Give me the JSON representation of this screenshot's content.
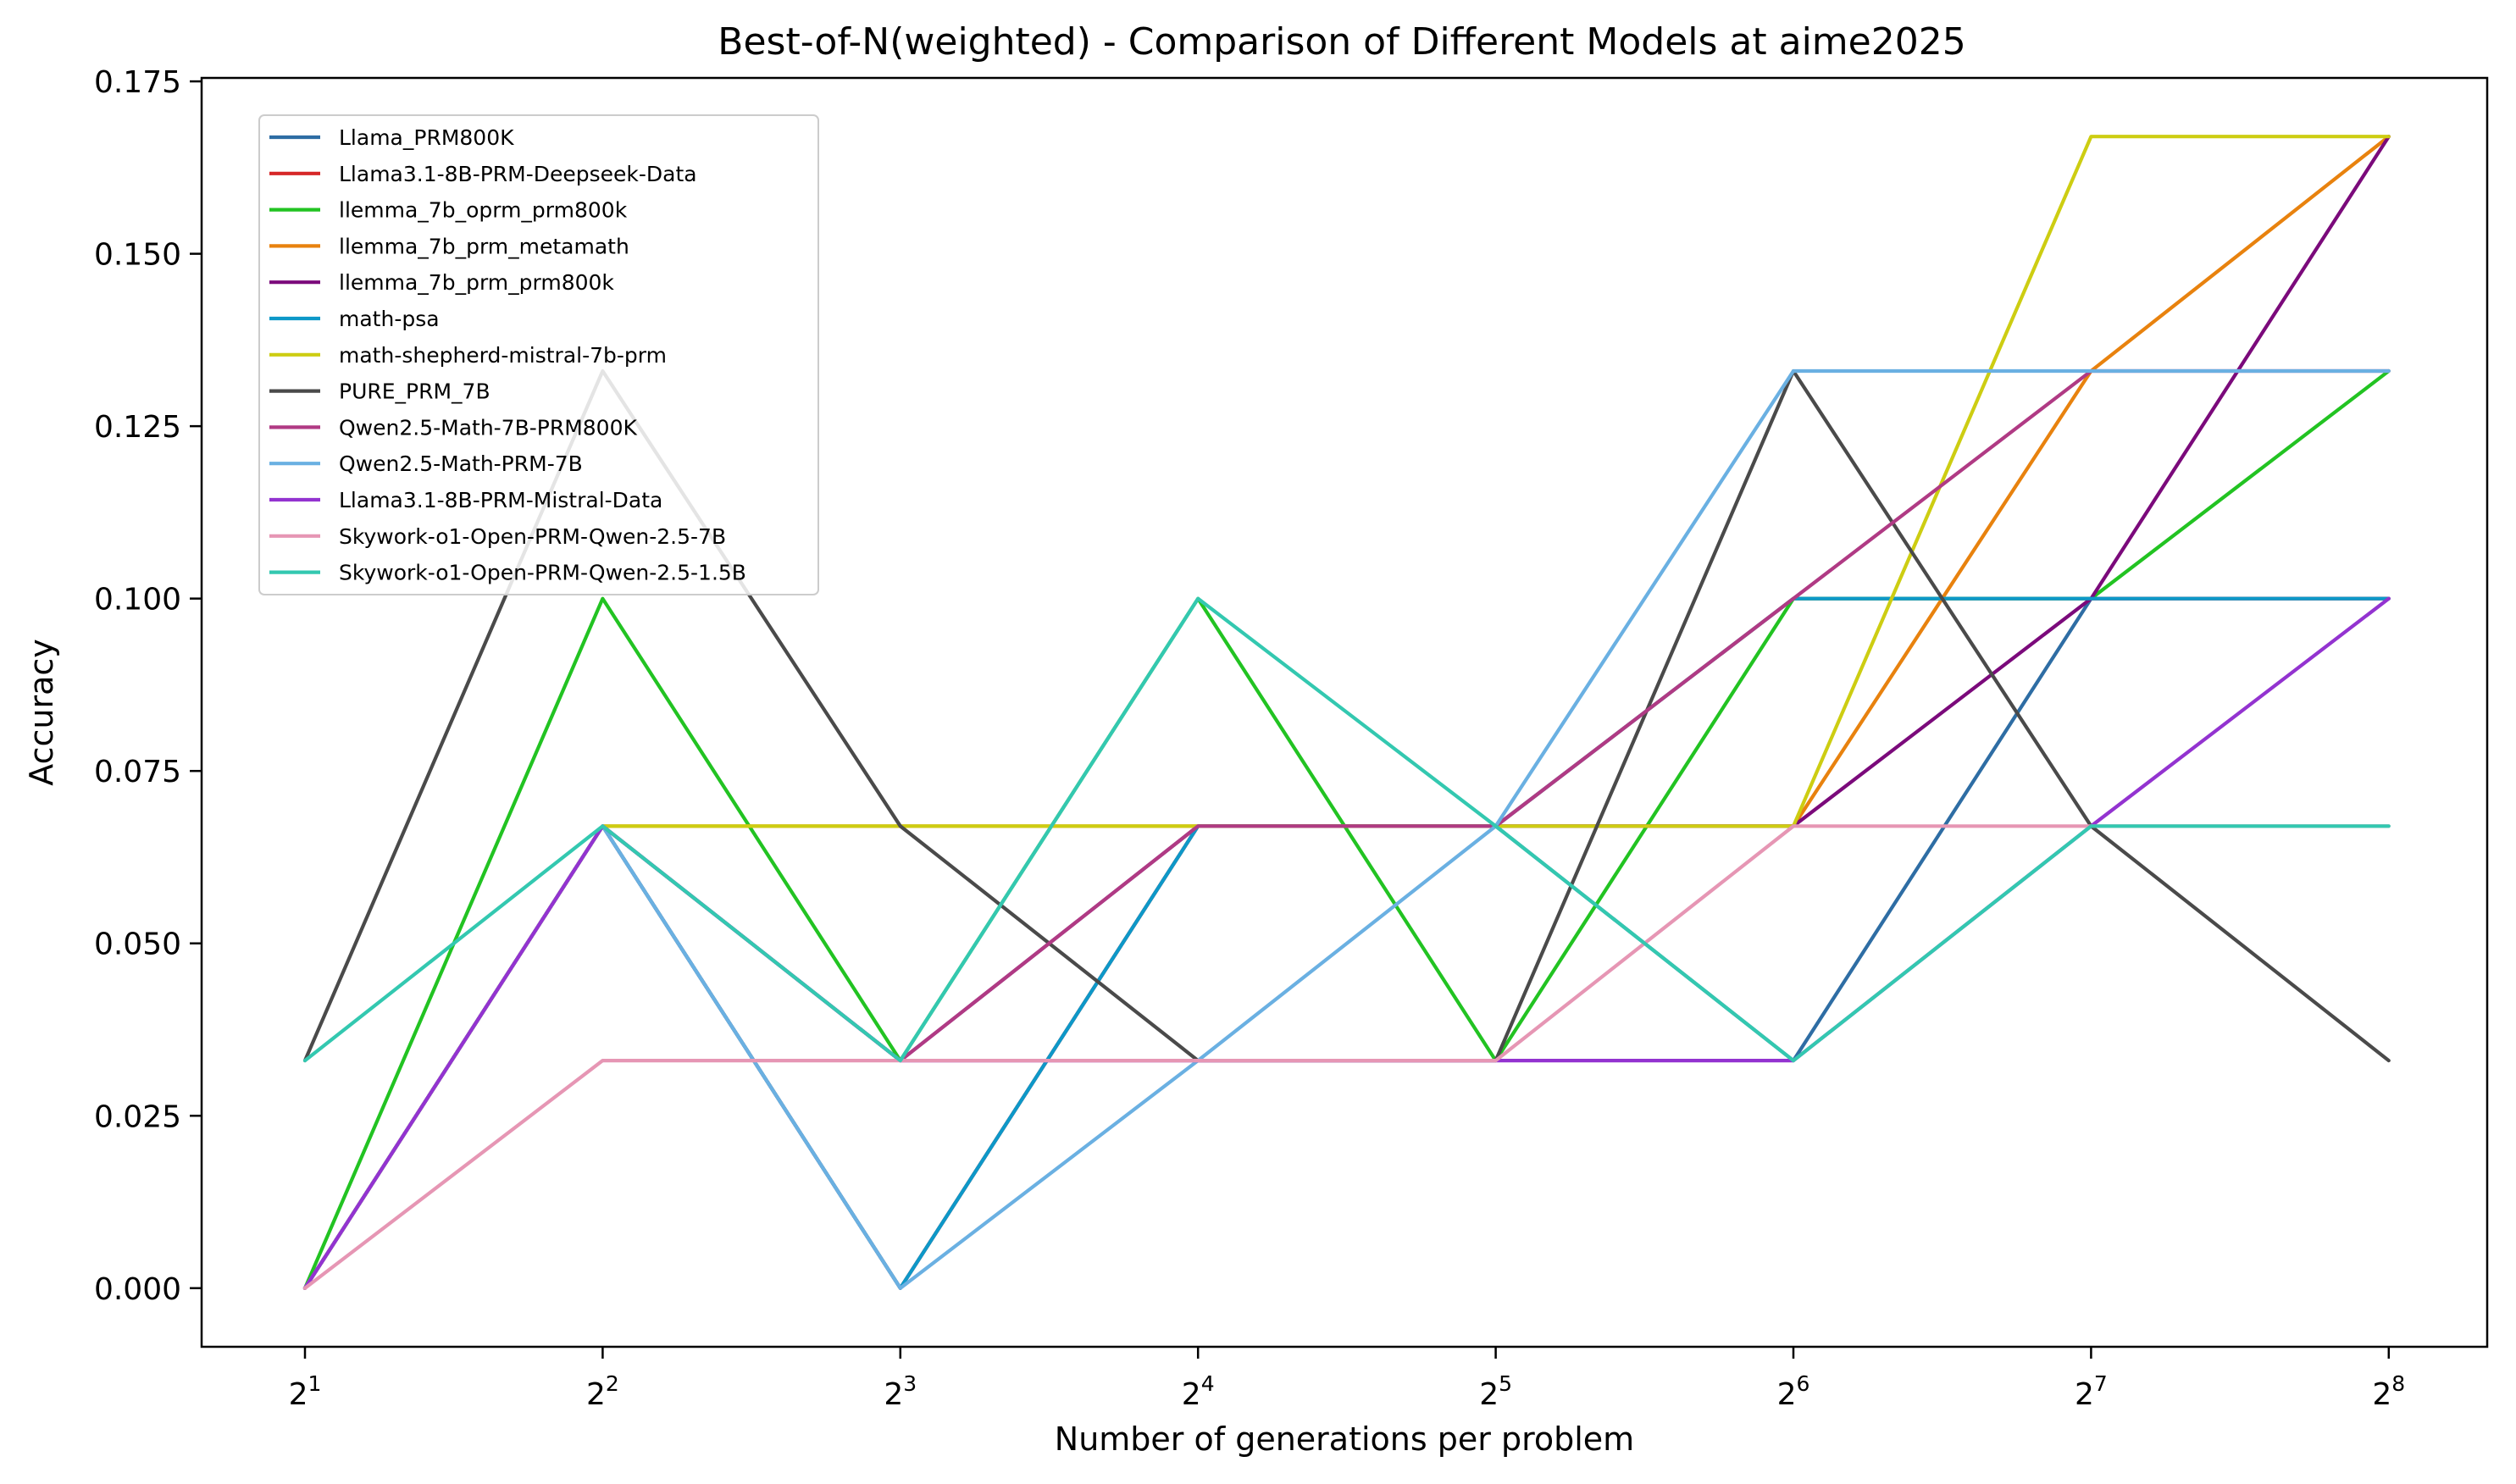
{
  "chart_data": {
    "type": "line",
    "title": "Best-of-N(weighted) - Comparison of Different Models at aime2025",
    "xlabel": "Number of generations per problem",
    "ylabel": "Accuracy",
    "x": [
      2,
      4,
      8,
      16,
      32,
      64,
      128,
      256
    ],
    "x_scale": "log2",
    "x_tick_labels": [
      {
        "base": "2",
        "exp": "1"
      },
      {
        "base": "2",
        "exp": "2"
      },
      {
        "base": "2",
        "exp": "3"
      },
      {
        "base": "2",
        "exp": "4"
      },
      {
        "base": "2",
        "exp": "5"
      },
      {
        "base": "2",
        "exp": "6"
      },
      {
        "base": "2",
        "exp": "7"
      },
      {
        "base": "2",
        "exp": "8"
      }
    ],
    "ylim": [
      -0.0085,
      0.1755
    ],
    "y_ticks": [
      0.0,
      0.025,
      0.05,
      0.075,
      0.1,
      0.125,
      0.15,
      0.175
    ],
    "y_tick_labels": [
      "0.000",
      "0.025",
      "0.050",
      "0.075",
      "0.100",
      "0.125",
      "0.150",
      "0.175"
    ],
    "grid": false,
    "legend_position": "top-left",
    "series": [
      {
        "name": "Llama_PRM800K",
        "color": "#2e6da4",
        "values": [
          0.0,
          0.067,
          0.0,
          0.067,
          0.067,
          0.033,
          0.1,
          0.1
        ]
      },
      {
        "name": "Llama3.1-8B-PRM-Deepseek-Data",
        "color": "#d62728",
        "values": [
          0.0,
          0.067,
          0.0,
          0.067,
          0.067,
          0.1,
          0.1,
          0.1
        ]
      },
      {
        "name": "llemma_7b_oprm_prm800k",
        "color": "#22c322",
        "values": [
          0.0,
          0.1,
          0.033,
          0.1,
          0.033,
          0.1,
          0.1,
          0.133
        ]
      },
      {
        "name": "llemma_7b_prm_metamath",
        "color": "#e8820e",
        "values": [
          0.0,
          0.067,
          0.067,
          0.067,
          0.067,
          0.067,
          0.133,
          0.167
        ]
      },
      {
        "name": "llemma_7b_prm_prm800k",
        "color": "#7b0a7b",
        "values": [
          0.0,
          0.067,
          0.033,
          0.067,
          0.067,
          0.067,
          0.1,
          0.167
        ]
      },
      {
        "name": "math-psa",
        "color": "#0d98c8",
        "values": [
          0.0,
          0.067,
          0.0,
          0.067,
          0.067,
          0.1,
          0.1,
          0.1
        ]
      },
      {
        "name": "math-shepherd-mistral-7b-prm",
        "color": "#cdcd12",
        "values": [
          0.0,
          0.067,
          0.067,
          0.067,
          0.067,
          0.067,
          0.167,
          0.167
        ]
      },
      {
        "name": "PURE_PRM_7B",
        "color": "#4a4a4a",
        "values": [
          0.033,
          0.133,
          0.067,
          0.033,
          0.033,
          0.133,
          0.067,
          0.033
        ]
      },
      {
        "name": "Qwen2.5-Math-7B-PRM800K",
        "color": "#b03a84",
        "values": [
          0.0,
          0.067,
          0.033,
          0.067,
          0.067,
          0.1,
          0.133,
          0.133
        ]
      },
      {
        "name": "Qwen2.5-Math-PRM-7B",
        "color": "#6ab0e2",
        "values": [
          0.0,
          0.067,
          0.0,
          0.033,
          0.067,
          0.133,
          0.133,
          0.133
        ]
      },
      {
        "name": "Llama3.1-8B-PRM-Mistral-Data",
        "color": "#9333d0",
        "values": [
          0.0,
          0.067,
          0.033,
          0.033,
          0.033,
          0.033,
          0.067,
          0.1
        ]
      },
      {
        "name": "Skywork-o1-Open-PRM-Qwen-2.5-7B",
        "color": "#e696b4",
        "values": [
          0.0,
          0.033,
          0.033,
          0.033,
          0.033,
          0.067,
          0.067,
          0.067
        ]
      },
      {
        "name": "Skywork-o1-Open-PRM-Qwen-2.5-1.5B",
        "color": "#33c8b0",
        "values": [
          0.033,
          0.067,
          0.033,
          0.1,
          0.067,
          0.033,
          0.067,
          0.067
        ]
      }
    ]
  }
}
